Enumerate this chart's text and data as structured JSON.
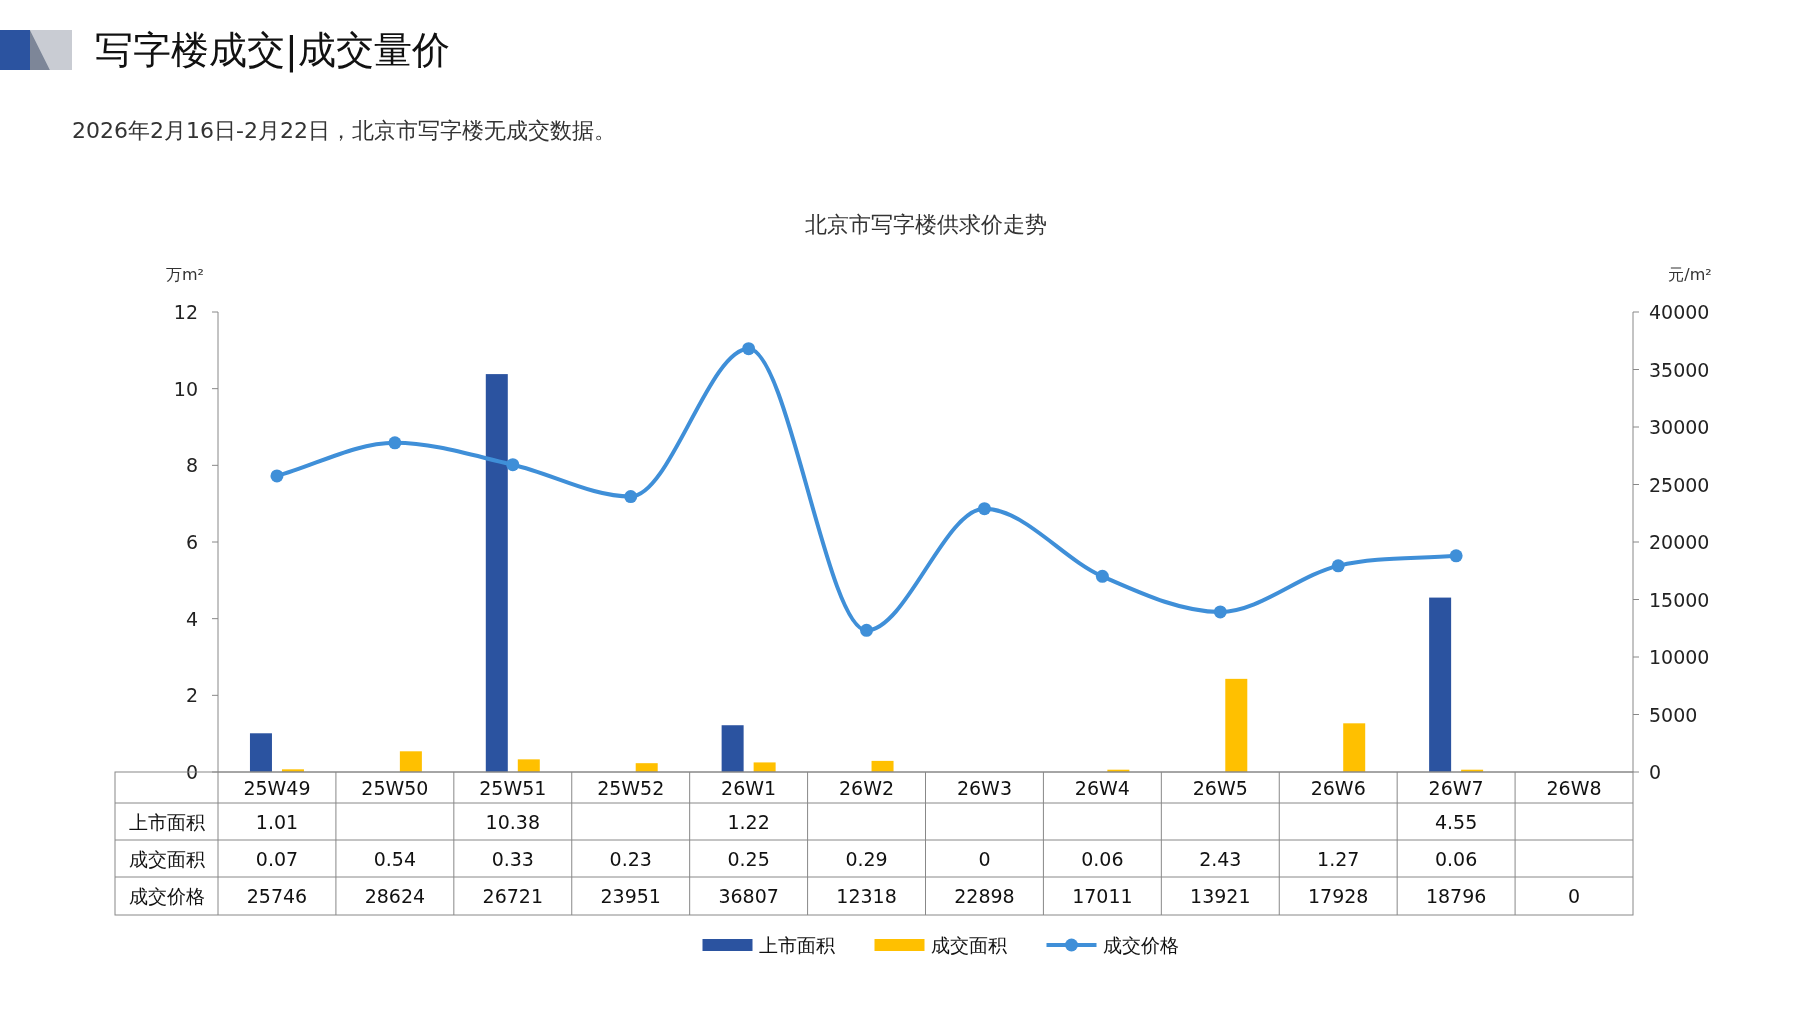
{
  "chart_data": {
    "type": "bar",
    "title": "北京市写字楼供求价走势",
    "annotations": [
      "写字楼成交|成交量价",
      "2026年2月16日-2月22日，北京市写字楼无成交数据。"
    ],
    "categories": [
      "25W49",
      "25W50",
      "25W51",
      "25W52",
      "26W1",
      "26W2",
      "26W3",
      "26W4",
      "26W5",
      "26W6",
      "26W7",
      "26W8"
    ],
    "ylabel": "万m²",
    "y2label": "元/m²",
    "ylim": [
      0,
      12
    ],
    "yticks": [
      0,
      2,
      4,
      6,
      8,
      10,
      12
    ],
    "y2lim": [
      0,
      40000
    ],
    "y2ticks": [
      0,
      5000,
      10000,
      15000,
      20000,
      25000,
      30000,
      35000,
      40000
    ],
    "legend": "bottom",
    "series": [
      {
        "name": "上市面积",
        "axis": "y",
        "color": "#2b53a0",
        "values": [
          1.01,
          null,
          10.38,
          null,
          1.22,
          null,
          null,
          null,
          null,
          null,
          4.55,
          null
        ],
        "value_labels": [
          "1.01",
          null,
          "10.38",
          null,
          "1.22",
          null,
          null,
          null,
          null,
          null,
          "4.55",
          null
        ]
      },
      {
        "name": "成交面积",
        "axis": "y",
        "color": "#ffc000",
        "values": [
          0.07,
          0.54,
          0.33,
          0.23,
          0.25,
          0.29,
          0,
          0.06,
          2.43,
          1.27,
          0.06,
          null
        ],
        "value_labels": [
          "0.07",
          "0.54",
          "0.33",
          "0.23",
          "0.25",
          "0.29",
          "0",
          "0.06",
          "2.43",
          "1.27",
          "0.06",
          null
        ]
      },
      {
        "name": "成交价格",
        "type": "line",
        "axis": "y2",
        "color": "#3f8fd8",
        "marker": "circle",
        "line_style": "solid",
        "values": [
          25746,
          28624,
          26721,
          23951,
          36807,
          12318,
          22898,
          17011,
          13921,
          17928,
          18796,
          null
        ],
        "value_labels": [
          "25746",
          "28624",
          "26721",
          "23951",
          "36807",
          "12318",
          "22898",
          "17011",
          "13921",
          "17928",
          "18796",
          "0"
        ]
      }
    ]
  }
}
